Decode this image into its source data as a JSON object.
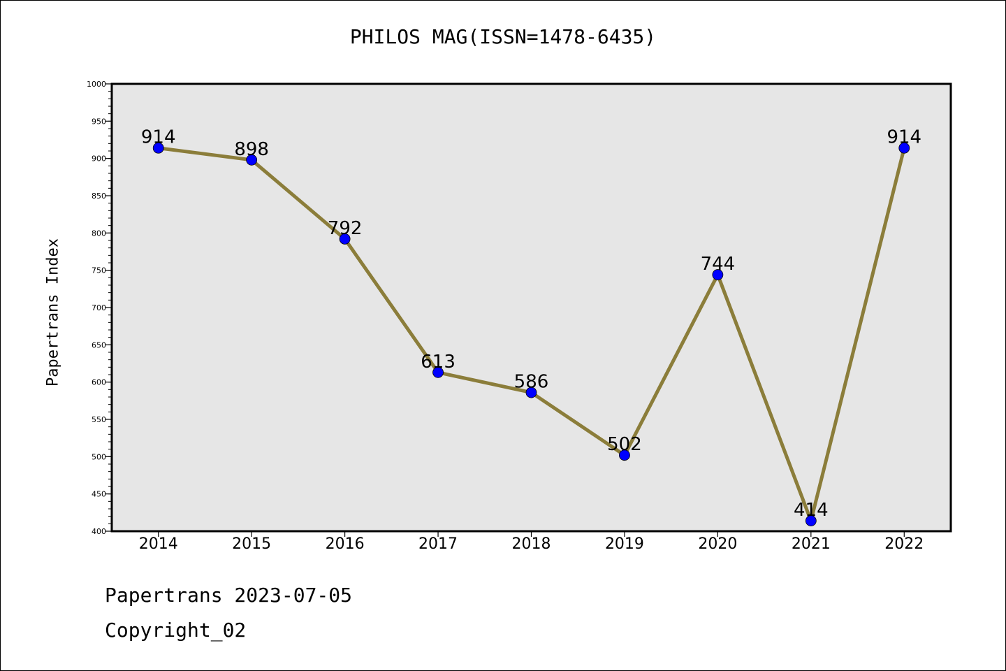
{
  "chart_data": {
    "type": "line",
    "title": "PHILOS MAG(ISSN=1478-6435)",
    "xlabel": "",
    "ylabel": "Papertrans Index",
    "categories": [
      "2014",
      "2015",
      "2016",
      "2017",
      "2018",
      "2019",
      "2020",
      "2021",
      "2022"
    ],
    "series": [
      {
        "values": [
          914,
          898,
          792,
          613,
          586,
          502,
          744,
          414,
          914
        ]
      }
    ],
    "ylim": [
      400,
      1000
    ],
    "yticks": [
      400,
      450,
      500,
      550,
      600,
      650,
      700,
      750,
      800,
      850,
      900,
      950,
      1000
    ],
    "grid": false,
    "colors": {
      "line": "#8b7d3a",
      "marker": "#0000ff",
      "plot_background": "#e6e6e6"
    }
  },
  "footer": {
    "line1": "Papertrans 2023-07-05",
    "line2": "Copyright_02"
  }
}
